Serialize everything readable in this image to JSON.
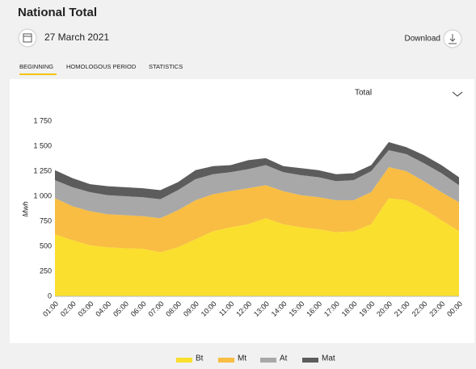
{
  "header": {
    "title": "National Total",
    "date": "27 March 2021",
    "download": "Download"
  },
  "tabs": [
    "BEGINNING",
    "HOMOLOGOUS PERIOD",
    "STATISTICS"
  ],
  "dropdown": "Total",
  "chart_data": {
    "type": "stacked_area",
    "y_label": "Mwh",
    "categories": [
      "01:00",
      "02:00",
      "03:00",
      "04:00",
      "05:00",
      "06:00",
      "07:00",
      "08:00",
      "09:00",
      "10:00",
      "11:00",
      "12:00",
      "13:00",
      "14:00",
      "15:00",
      "16:00",
      "17:00",
      "18:00",
      "19:00",
      "20:00",
      "21:00",
      "22:00",
      "23:00",
      "00:00"
    ],
    "series": [
      {
        "name": "Bt",
        "color": "#fadf2e",
        "values": [
          620,
          560,
          510,
          490,
          480,
          475,
          440,
          490,
          570,
          650,
          690,
          720,
          780,
          720,
          690,
          670,
          640,
          650,
          720,
          980,
          960,
          870,
          760,
          650
        ]
      },
      {
        "name": "Mt",
        "color": "#f8bd42",
        "values": [
          360,
          340,
          340,
          330,
          330,
          325,
          340,
          370,
          390,
          370,
          360,
          360,
          330,
          330,
          320,
          320,
          320,
          310,
          320,
          310,
          290,
          280,
          280,
          290
        ]
      },
      {
        "name": "At",
        "color": "#a8a8a8",
        "values": [
          180,
          190,
          190,
          190,
          190,
          190,
          190,
          200,
          210,
          200,
          190,
          190,
          200,
          190,
          200,
          200,
          190,
          200,
          210,
          170,
          170,
          180,
          190,
          170
        ]
      },
      {
        "name": "Mat",
        "color": "#5c5c5c",
        "values": [
          100,
          90,
          80,
          90,
          90,
          90,
          90,
          80,
          90,
          80,
          70,
          90,
          70,
          60,
          70,
          70,
          70,
          70,
          60,
          80,
          70,
          80,
          80,
          80
        ]
      }
    ],
    "ylim": [
      0,
      1750
    ],
    "yticks": [
      0,
      250,
      500,
      750,
      {
        "value": 1000,
        "label": "1 000"
      },
      {
        "value": 1250,
        "label": "1 250"
      },
      {
        "value": 1500,
        "label": "1 500"
      },
      {
        "value": 1750,
        "label": "1 750"
      }
    ],
    "grid": false
  }
}
